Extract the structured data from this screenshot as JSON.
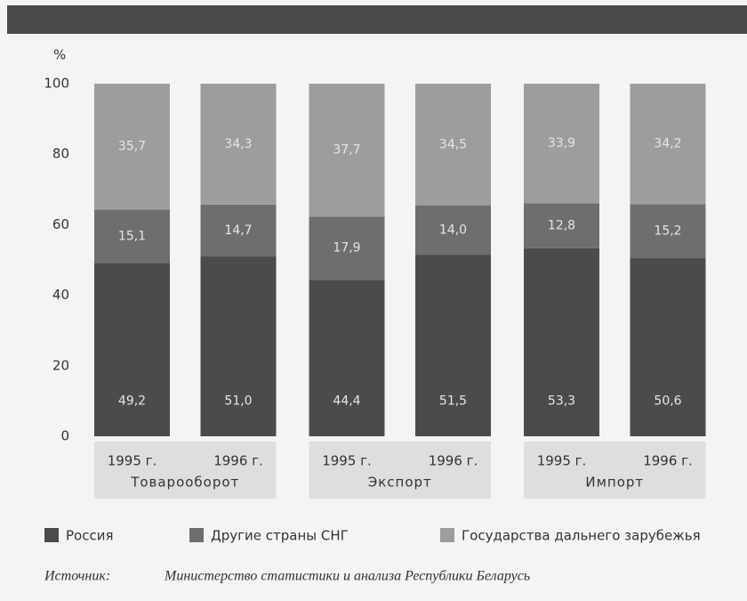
{
  "chart_data": {
    "type": "stacked-bar",
    "y_unit_label": "%",
    "categories": [
      "1995 г.",
      "1996 г.",
      "1995 г.",
      "1996 г.",
      "1995 г.",
      "1996 г."
    ],
    "groups": [
      "Товарооборот",
      "Экспорт",
      "Импорт"
    ],
    "ylim": [
      0,
      100
    ],
    "yticks": [
      0,
      20,
      40,
      60,
      80,
      100
    ],
    "series": [
      {
        "name": "Россия",
        "color": "#4b4b4b",
        "values": [
          49.2,
          51.0,
          44.4,
          51.5,
          53.3,
          50.6
        ],
        "value_labels": [
          "49,2",
          "51,0",
          "44,4",
          "51,5",
          "53,3",
          "50,6"
        ]
      },
      {
        "name": "Другие страны СНГ",
        "color": "#6e6e6e",
        "values": [
          15.1,
          14.7,
          17.9,
          14.0,
          12.8,
          15.2
        ],
        "value_labels": [
          "15,1",
          "14,7",
          "17,9",
          "14,0",
          "12,8",
          "15,2"
        ]
      },
      {
        "name": "Государства дальнего зарубежья",
        "color": "#9d9d9d",
        "values": [
          35.7,
          34.3,
          37.7,
          34.5,
          33.9,
          34.2
        ],
        "value_labels": [
          "35,7",
          "34,3",
          "37,7",
          "34,5",
          "33,9",
          "34,2"
        ]
      }
    ],
    "source_label": "Источник:",
    "source": "Министерство статистики и анализа Республики Беларусь"
  }
}
